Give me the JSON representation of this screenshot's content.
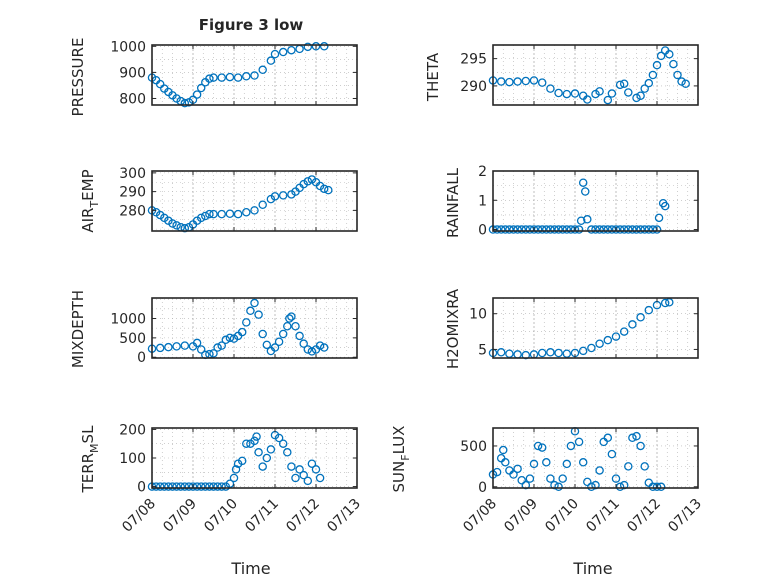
{
  "figure": {
    "title": "Figure 3 low",
    "date_ticks": [
      "07/08",
      "07/09",
      "07/10",
      "07/11",
      "07/12",
      "07/13"
    ],
    "xlabel": "Time",
    "marker_color": "#0072bd",
    "axis_color": "#262626",
    "grid_color": "#b0b0b0"
  },
  "chart_data": [
    {
      "type": "scatter",
      "panel": "pressure",
      "ylabel": "PRESSURE",
      "xlim": [
        "07/08",
        "07/13"
      ],
      "ylim": [
        775,
        1005
      ],
      "yticks": [
        800,
        900,
        1000
      ],
      "ytick_labels": [
        "800",
        "900",
        "1000"
      ],
      "x_unit": "days since 07/08 00:00",
      "points": [
        [
          0.0,
          880
        ],
        [
          0.1,
          870
        ],
        [
          0.2,
          855
        ],
        [
          0.3,
          838
        ],
        [
          0.4,
          825
        ],
        [
          0.5,
          812
        ],
        [
          0.6,
          800
        ],
        [
          0.7,
          790
        ],
        [
          0.8,
          782
        ],
        [
          0.9,
          785
        ],
        [
          1.0,
          795
        ],
        [
          1.1,
          815
        ],
        [
          1.2,
          840
        ],
        [
          1.3,
          862
        ],
        [
          1.4,
          876
        ],
        [
          1.5,
          880
        ],
        [
          1.7,
          880
        ],
        [
          1.9,
          882
        ],
        [
          2.1,
          880
        ],
        [
          2.3,
          885
        ],
        [
          2.5,
          888
        ],
        [
          2.7,
          910
        ],
        [
          2.9,
          945
        ],
        [
          3.0,
          970
        ],
        [
          3.2,
          978
        ],
        [
          3.4,
          985
        ],
        [
          3.6,
          990
        ],
        [
          3.8,
          998
        ],
        [
          4.0,
          1000
        ],
        [
          4.2,
          1000
        ]
      ]
    },
    {
      "type": "scatter",
      "panel": "theta",
      "ylabel": "THETA",
      "xlim": [
        "07/08",
        "07/13"
      ],
      "ylim": [
        286.5,
        297.5
      ],
      "yticks": [
        290,
        295
      ],
      "ytick_labels": [
        "290",
        "295"
      ],
      "x_unit": "days since 07/08 00:00",
      "points": [
        [
          0.0,
          291
        ],
        [
          0.2,
          290.8
        ],
        [
          0.4,
          290.7
        ],
        [
          0.6,
          290.8
        ],
        [
          0.8,
          290.9
        ],
        [
          1.0,
          291
        ],
        [
          1.2,
          290.6
        ],
        [
          1.4,
          289.5
        ],
        [
          1.6,
          288.7
        ],
        [
          1.8,
          288.5
        ],
        [
          2.0,
          288.6
        ],
        [
          2.2,
          288.2
        ],
        [
          2.3,
          287.5
        ],
        [
          2.5,
          288.5
        ],
        [
          2.6,
          289
        ],
        [
          2.8,
          287.4
        ],
        [
          2.9,
          288.6
        ],
        [
          3.1,
          290.2
        ],
        [
          3.2,
          290.4
        ],
        [
          3.3,
          288.8
        ],
        [
          3.5,
          287.8
        ],
        [
          3.6,
          288.2
        ],
        [
          3.7,
          289.5
        ],
        [
          3.8,
          290.5
        ],
        [
          3.9,
          292
        ],
        [
          4.0,
          293.8
        ],
        [
          4.1,
          295.5
        ],
        [
          4.2,
          296.5
        ],
        [
          4.3,
          295.8
        ],
        [
          4.4,
          294
        ],
        [
          4.5,
          292
        ],
        [
          4.6,
          290.8
        ],
        [
          4.7,
          290.4
        ]
      ]
    },
    {
      "type": "scatter",
      "panel": "air_temp",
      "ylabel": "AIR_TEMP",
      "xlim": [
        "07/08",
        "07/13"
      ],
      "ylim": [
        269,
        301
      ],
      "yticks": [
        280,
        290,
        300
      ],
      "ytick_labels": [
        "280",
        "290",
        "300"
      ],
      "x_unit": "days since 07/08 00:00",
      "points": [
        [
          0.0,
          280
        ],
        [
          0.1,
          279
        ],
        [
          0.2,
          277.5
        ],
        [
          0.3,
          276
        ],
        [
          0.4,
          274.5
        ],
        [
          0.5,
          273
        ],
        [
          0.6,
          272
        ],
        [
          0.7,
          271
        ],
        [
          0.8,
          270.5
        ],
        [
          0.9,
          271
        ],
        [
          1.0,
          272.5
        ],
        [
          1.1,
          274.5
        ],
        [
          1.2,
          276
        ],
        [
          1.3,
          277
        ],
        [
          1.4,
          278
        ],
        [
          1.5,
          278
        ],
        [
          1.7,
          278
        ],
        [
          1.9,
          278.2
        ],
        [
          2.1,
          278
        ],
        [
          2.3,
          279
        ],
        [
          2.5,
          280
        ],
        [
          2.7,
          283
        ],
        [
          2.9,
          286
        ],
        [
          3.0,
          287.5
        ],
        [
          3.2,
          288
        ],
        [
          3.4,
          288.5
        ],
        [
          3.5,
          290
        ],
        [
          3.6,
          292
        ],
        [
          3.7,
          294
        ],
        [
          3.8,
          295.5
        ],
        [
          3.9,
          296.5
        ],
        [
          4.0,
          295
        ],
        [
          4.1,
          293
        ],
        [
          4.2,
          291.5
        ],
        [
          4.3,
          290.8
        ]
      ]
    },
    {
      "type": "scatter",
      "panel": "rainfall",
      "ylabel": "RAINFALL",
      "xlim": [
        "07/08",
        "07/13"
      ],
      "ylim": [
        -0.05,
        2.0
      ],
      "yticks": [
        0,
        1,
        2
      ],
      "ytick_labels": [
        "0",
        "1",
        "2"
      ],
      "x_unit": "days since 07/08 00:00",
      "points": [
        [
          0.0,
          0
        ],
        [
          0.1,
          0
        ],
        [
          0.2,
          0
        ],
        [
          0.3,
          0
        ],
        [
          0.4,
          0
        ],
        [
          0.5,
          0
        ],
        [
          0.6,
          0
        ],
        [
          0.7,
          0
        ],
        [
          0.8,
          0
        ],
        [
          0.9,
          0
        ],
        [
          1.0,
          0
        ],
        [
          1.1,
          0
        ],
        [
          1.2,
          0
        ],
        [
          1.3,
          0
        ],
        [
          1.4,
          0
        ],
        [
          1.5,
          0
        ],
        [
          1.6,
          0
        ],
        [
          1.7,
          0
        ],
        [
          1.8,
          0
        ],
        [
          1.9,
          0
        ],
        [
          2.0,
          0
        ],
        [
          2.1,
          0
        ],
        [
          2.15,
          0.3
        ],
        [
          2.2,
          1.6
        ],
        [
          2.25,
          1.3
        ],
        [
          2.3,
          0.35
        ],
        [
          2.4,
          0
        ],
        [
          2.5,
          0
        ],
        [
          2.6,
          0
        ],
        [
          2.7,
          0
        ],
        [
          2.8,
          0
        ],
        [
          2.9,
          0
        ],
        [
          3.0,
          0
        ],
        [
          3.1,
          0
        ],
        [
          3.2,
          0
        ],
        [
          3.3,
          0
        ],
        [
          3.4,
          0
        ],
        [
          3.5,
          0
        ],
        [
          3.6,
          0
        ],
        [
          3.7,
          0
        ],
        [
          3.8,
          0
        ],
        [
          3.9,
          0
        ],
        [
          4.0,
          0
        ],
        [
          4.05,
          0.4
        ],
        [
          4.15,
          0.9
        ],
        [
          4.2,
          0.8
        ]
      ]
    },
    {
      "type": "scatter",
      "panel": "mixdepth",
      "ylabel": "MIXDEPTH",
      "xlim": [
        "07/08",
        "07/13"
      ],
      "ylim": [
        -20,
        1530
      ],
      "yticks": [
        0,
        500,
        1000
      ],
      "ytick_labels": [
        "0",
        "500",
        "1000"
      ],
      "x_unit": "days since 07/08 00:00",
      "points": [
        [
          0.0,
          220
        ],
        [
          0.2,
          240
        ],
        [
          0.4,
          260
        ],
        [
          0.6,
          280
        ],
        [
          0.8,
          300
        ],
        [
          1.0,
          280
        ],
        [
          1.1,
          370
        ],
        [
          1.2,
          200
        ],
        [
          1.3,
          60
        ],
        [
          1.4,
          80
        ],
        [
          1.5,
          100
        ],
        [
          1.6,
          250
        ],
        [
          1.7,
          300
        ],
        [
          1.8,
          450
        ],
        [
          1.9,
          500
        ],
        [
          2.0,
          480
        ],
        [
          2.1,
          550
        ],
        [
          2.2,
          650
        ],
        [
          2.3,
          900
        ],
        [
          2.4,
          1200
        ],
        [
          2.5,
          1400
        ],
        [
          2.6,
          1100
        ],
        [
          2.7,
          600
        ],
        [
          2.8,
          320
        ],
        [
          2.9,
          160
        ],
        [
          3.0,
          250
        ],
        [
          3.1,
          400
        ],
        [
          3.2,
          600
        ],
        [
          3.3,
          800
        ],
        [
          3.35,
          1000
        ],
        [
          3.4,
          1050
        ],
        [
          3.5,
          800
        ],
        [
          3.6,
          550
        ],
        [
          3.7,
          350
        ],
        [
          3.8,
          200
        ],
        [
          3.9,
          150
        ],
        [
          4.0,
          200
        ],
        [
          4.1,
          300
        ],
        [
          4.2,
          250
        ]
      ]
    },
    {
      "type": "scatter",
      "panel": "h2omixra",
      "ylabel": "H2OMIXRA",
      "xlim": [
        "07/08",
        "07/13"
      ],
      "ylim": [
        3.8,
        12.2
      ],
      "yticks": [
        5,
        10
      ],
      "ytick_labels": [
        "5",
        "10"
      ],
      "x_unit": "days since 07/08 00:00",
      "points": [
        [
          0.0,
          4.5
        ],
        [
          0.2,
          4.6
        ],
        [
          0.4,
          4.4
        ],
        [
          0.6,
          4.3
        ],
        [
          0.8,
          4.2
        ],
        [
          1.0,
          4.3
        ],
        [
          1.2,
          4.5
        ],
        [
          1.4,
          4.6
        ],
        [
          1.6,
          4.5
        ],
        [
          1.8,
          4.4
        ],
        [
          2.0,
          4.5
        ],
        [
          2.2,
          4.8
        ],
        [
          2.4,
          5.2
        ],
        [
          2.6,
          5.8
        ],
        [
          2.8,
          6.3
        ],
        [
          3.0,
          6.8
        ],
        [
          3.2,
          7.5
        ],
        [
          3.4,
          8.5
        ],
        [
          3.6,
          9.5
        ],
        [
          3.8,
          10.5
        ],
        [
          4.0,
          11.2
        ],
        [
          4.2,
          11.5
        ],
        [
          4.3,
          11.6
        ]
      ]
    },
    {
      "type": "scatter",
      "panel": "terr_msl",
      "ylabel": "TERR_MSL",
      "xlim": [
        "07/08",
        "07/13"
      ],
      "ylim": [
        -5,
        205
      ],
      "yticks": [
        0,
        100,
        200
      ],
      "ytick_labels": [
        "0",
        "100",
        "200"
      ],
      "x_unit": "days since 07/08 00:00",
      "points": [
        [
          0.0,
          0
        ],
        [
          0.1,
          0
        ],
        [
          0.2,
          0
        ],
        [
          0.3,
          0
        ],
        [
          0.4,
          0
        ],
        [
          0.5,
          0
        ],
        [
          0.6,
          0
        ],
        [
          0.7,
          0
        ],
        [
          0.8,
          0
        ],
        [
          0.9,
          0
        ],
        [
          1.0,
          0
        ],
        [
          1.1,
          0
        ],
        [
          1.2,
          0
        ],
        [
          1.3,
          0
        ],
        [
          1.4,
          0
        ],
        [
          1.5,
          0
        ],
        [
          1.6,
          0
        ],
        [
          1.7,
          0
        ],
        [
          1.8,
          0
        ],
        [
          1.9,
          10
        ],
        [
          2.0,
          30
        ],
        [
          2.05,
          60
        ],
        [
          2.1,
          80
        ],
        [
          2.2,
          90
        ],
        [
          2.3,
          150
        ],
        [
          2.4,
          150
        ],
        [
          2.5,
          160
        ],
        [
          2.55,
          175
        ],
        [
          2.6,
          120
        ],
        [
          2.7,
          70
        ],
        [
          2.8,
          100
        ],
        [
          2.9,
          130
        ],
        [
          3.0,
          180
        ],
        [
          3.1,
          170
        ],
        [
          3.2,
          150
        ],
        [
          3.3,
          120
        ],
        [
          3.4,
          70
        ],
        [
          3.5,
          30
        ],
        [
          3.6,
          60
        ],
        [
          3.7,
          40
        ],
        [
          3.8,
          20
        ],
        [
          3.9,
          80
        ],
        [
          4.0,
          60
        ],
        [
          4.1,
          30
        ]
      ]
    },
    {
      "type": "scatter",
      "panel": "sun_flux",
      "ylabel": "SUN_FLUX",
      "xlim": [
        "07/08",
        "07/13"
      ],
      "ylim": [
        -15,
        720
      ],
      "yticks": [
        0,
        500
      ],
      "ytick_labels": [
        "0",
        "500"
      ],
      "x_unit": "days since 07/08 00:00",
      "points": [
        [
          0.0,
          150
        ],
        [
          0.1,
          180
        ],
        [
          0.2,
          350
        ],
        [
          0.25,
          450
        ],
        [
          0.3,
          300
        ],
        [
          0.4,
          200
        ],
        [
          0.5,
          150
        ],
        [
          0.6,
          220
        ],
        [
          0.7,
          80
        ],
        [
          0.8,
          20
        ],
        [
          0.9,
          100
        ],
        [
          1.0,
          280
        ],
        [
          1.1,
          500
        ],
        [
          1.2,
          480
        ],
        [
          1.3,
          300
        ],
        [
          1.4,
          100
        ],
        [
          1.5,
          20
        ],
        [
          1.6,
          0
        ],
        [
          1.7,
          100
        ],
        [
          1.8,
          280
        ],
        [
          1.9,
          500
        ],
        [
          2.0,
          680
        ],
        [
          2.1,
          550
        ],
        [
          2.2,
          300
        ],
        [
          2.3,
          60
        ],
        [
          2.4,
          0
        ],
        [
          2.5,
          20
        ],
        [
          2.6,
          200
        ],
        [
          2.7,
          550
        ],
        [
          2.8,
          600
        ],
        [
          2.9,
          400
        ],
        [
          3.0,
          100
        ],
        [
          3.1,
          0
        ],
        [
          3.2,
          20
        ],
        [
          3.3,
          250
        ],
        [
          3.4,
          600
        ],
        [
          3.5,
          620
        ],
        [
          3.6,
          500
        ],
        [
          3.7,
          250
        ],
        [
          3.8,
          50
        ],
        [
          3.9,
          0
        ],
        [
          4.0,
          0
        ],
        [
          4.1,
          0
        ]
      ]
    }
  ]
}
